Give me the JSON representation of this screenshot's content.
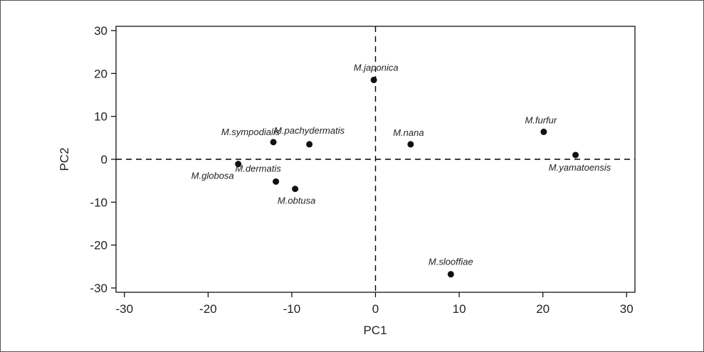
{
  "chart_data": {
    "type": "scatter",
    "xlabel": "PC1",
    "ylabel": "PC2",
    "xlim": [
      -31,
      31
    ],
    "ylim": [
      -31,
      31
    ],
    "xticks": [
      -30,
      -20,
      -10,
      0,
      10,
      20,
      30
    ],
    "yticks": [
      30,
      20,
      10,
      0,
      -10,
      -20,
      -30
    ],
    "reference_lines": {
      "x": 0,
      "y": 0,
      "style": "dashed"
    },
    "grid": false,
    "points": [
      {
        "label": "M.japonica",
        "x": -0.2,
        "y": 18.5
      },
      {
        "label": "M.sympodialis",
        "x": -12.2,
        "y": 4.0
      },
      {
        "label": "M.pachydermatis",
        "x": -7.9,
        "y": 3.5
      },
      {
        "label": "M.nana",
        "x": 4.2,
        "y": 3.5
      },
      {
        "label": "M.furfur",
        "x": 20.1,
        "y": 6.4
      },
      {
        "label": "M.yamatoensis",
        "x": 23.9,
        "y": 1.0
      },
      {
        "label": "M.globosa",
        "x": -16.4,
        "y": -1.1
      },
      {
        "label": "M.dermatis",
        "x": -11.9,
        "y": -5.2
      },
      {
        "label": "M.obtusa",
        "x": -9.6,
        "y": -6.9
      },
      {
        "label": "M.slooffiae",
        "x": 9.0,
        "y": -26.8
      }
    ]
  }
}
